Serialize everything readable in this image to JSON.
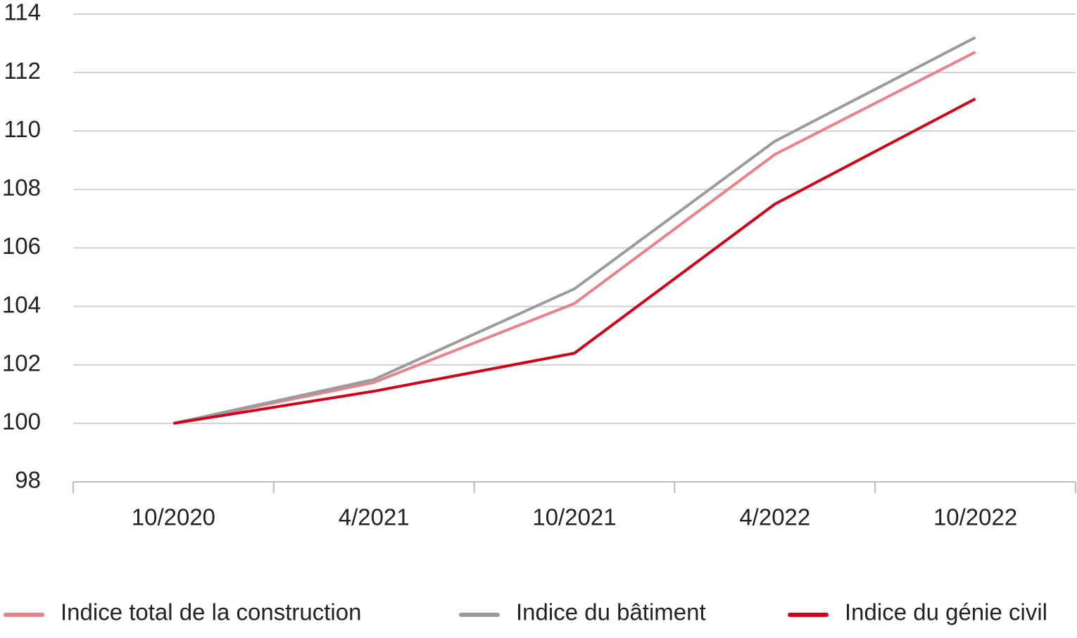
{
  "chart_data": {
    "type": "line",
    "categories": [
      "10/2020",
      "4/2021",
      "10/2021",
      "4/2022",
      "10/2022"
    ],
    "series": [
      {
        "name": "Indice total de la construction",
        "color": "#e8838b",
        "values": [
          100,
          101.4,
          104.1,
          109.2,
          112.7
        ]
      },
      {
        "name": "Indice du bâtiment",
        "color": "#9b9b9b",
        "values": [
          100,
          101.5,
          104.6,
          109.65,
          113.2
        ]
      },
      {
        "name": "Indice du génie civil",
        "color": "#d0021b",
        "values": [
          100,
          101.1,
          102.4,
          107.5,
          111.1
        ]
      }
    ],
    "ylim": [
      98,
      114
    ],
    "yticks": [
      98,
      100,
      102,
      104,
      106,
      108,
      110,
      112,
      114
    ],
    "grid": true,
    "legend": "bottom"
  }
}
